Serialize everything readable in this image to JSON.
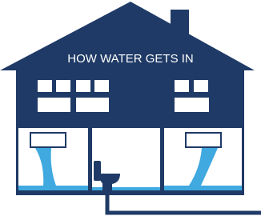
{
  "title": "HOW WATER GETS IN"
}
